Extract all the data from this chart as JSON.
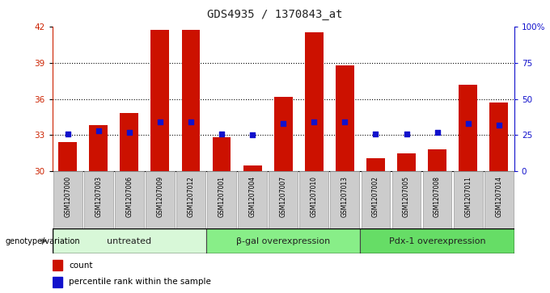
{
  "title": "GDS4935 / 1370843_at",
  "samples": [
    "GSM1207000",
    "GSM1207003",
    "GSM1207006",
    "GSM1207009",
    "GSM1207012",
    "GSM1207001",
    "GSM1207004",
    "GSM1207007",
    "GSM1207010",
    "GSM1207013",
    "GSM1207002",
    "GSM1207005",
    "GSM1207008",
    "GSM1207011",
    "GSM1207014"
  ],
  "counts": [
    32.4,
    33.8,
    34.8,
    41.7,
    41.7,
    32.8,
    30.5,
    36.2,
    41.5,
    38.8,
    31.1,
    31.5,
    31.8,
    37.2,
    35.7
  ],
  "percentile_ranks": [
    26,
    28,
    27,
    34,
    34,
    26,
    25,
    33,
    34,
    34,
    26,
    26,
    27,
    33,
    32
  ],
  "baseline": 30,
  "ylim_left": [
    30,
    42
  ],
  "ylim_right": [
    0,
    100
  ],
  "yticks_left": [
    30,
    33,
    36,
    39,
    42
  ],
  "yticks_right": [
    0,
    25,
    50,
    75,
    100
  ],
  "ytick_labels_right": [
    "0",
    "25",
    "50",
    "75",
    "100%"
  ],
  "bar_color": "#cc1100",
  "dot_color": "#1111cc",
  "groups": [
    {
      "label": "untreated",
      "start": 0,
      "end": 5,
      "color": "#d8f8d8"
    },
    {
      "label": "β-gal overexpression",
      "start": 5,
      "end": 10,
      "color": "#88ee88"
    },
    {
      "label": "Pdx-1 overexpression",
      "start": 10,
      "end": 15,
      "color": "#66dd66"
    }
  ],
  "group_row_label": "genotype/variation",
  "legend_count_label": "count",
  "legend_percentile_label": "percentile rank within the sample",
  "fig_bg": "#ffffff",
  "plot_bg": "#ffffff",
  "left_axis_color": "#cc2200",
  "right_axis_color": "#1111cc",
  "sample_box_color": "#cccccc",
  "sample_box_edge": "#999999"
}
